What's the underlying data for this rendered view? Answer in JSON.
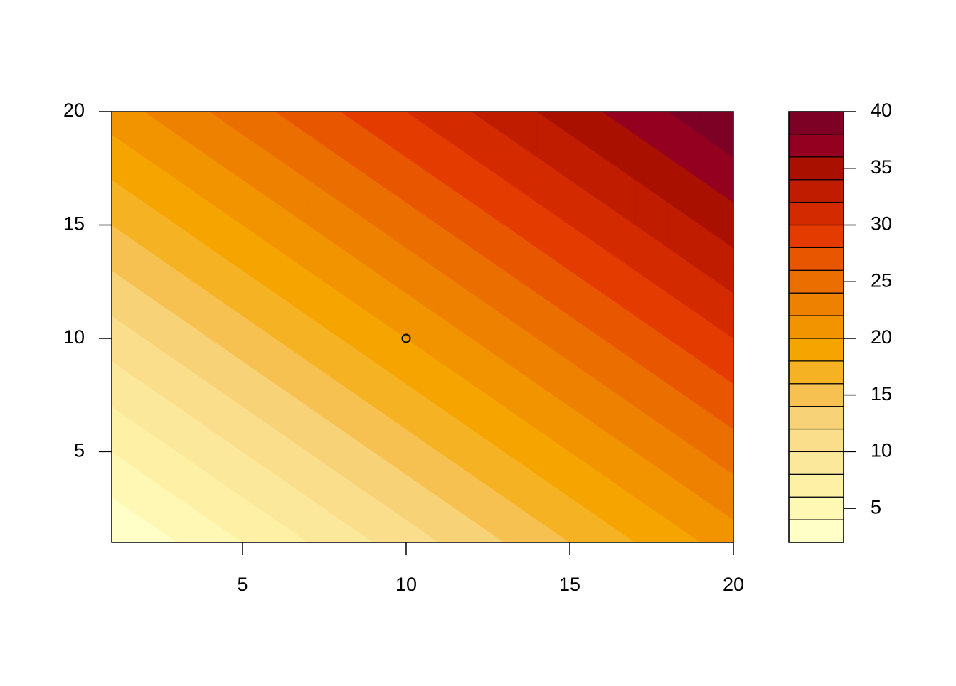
{
  "chart_data": {
    "type": "filled_contour",
    "x": [
      1,
      2,
      3,
      4,
      5,
      6,
      7,
      8,
      9,
      10,
      11,
      12,
      13,
      14,
      15,
      16,
      17,
      18,
      19,
      20
    ],
    "y": [
      1,
      2,
      3,
      4,
      5,
      6,
      7,
      8,
      9,
      10,
      11,
      12,
      13,
      14,
      15,
      16,
      17,
      18,
      19,
      20
    ],
    "z": [
      [
        2,
        3,
        4,
        5,
        6,
        7,
        8,
        9,
        10,
        11,
        12,
        13,
        14,
        15,
        16,
        17,
        18,
        19,
        20,
        21
      ],
      [
        3,
        4,
        5,
        6,
        7,
        8,
        9,
        10,
        11,
        12,
        13,
        14,
        15,
        16,
        17,
        18,
        19,
        20,
        21,
        22
      ],
      [
        4,
        5,
        6,
        7,
        8,
        9,
        10,
        11,
        12,
        13,
        14,
        15,
        16,
        17,
        18,
        19,
        20,
        21,
        22,
        23
      ],
      [
        5,
        6,
        7,
        8,
        9,
        10,
        11,
        12,
        13,
        14,
        15,
        16,
        17,
        18,
        19,
        20,
        21,
        22,
        23,
        24
      ],
      [
        6,
        7,
        8,
        9,
        10,
        11,
        12,
        13,
        14,
        15,
        16,
        17,
        18,
        19,
        20,
        21,
        22,
        23,
        24,
        25
      ],
      [
        7,
        8,
        9,
        10,
        11,
        12,
        13,
        14,
        15,
        16,
        17,
        18,
        19,
        20,
        21,
        22,
        23,
        24,
        25,
        26
      ],
      [
        8,
        9,
        10,
        11,
        12,
        13,
        14,
        15,
        16,
        17,
        18,
        19,
        20,
        21,
        22,
        23,
        24,
        25,
        26,
        27
      ],
      [
        9,
        10,
        11,
        12,
        13,
        14,
        15,
        16,
        17,
        18,
        19,
        20,
        21,
        22,
        23,
        24,
        25,
        26,
        27,
        28
      ],
      [
        10,
        11,
        12,
        13,
        14,
        15,
        16,
        17,
        18,
        19,
        20,
        21,
        22,
        23,
        24,
        25,
        26,
        27,
        28,
        29
      ],
      [
        11,
        12,
        13,
        14,
        15,
        16,
        17,
        18,
        19,
        20,
        21,
        22,
        23,
        24,
        25,
        26,
        27,
        28,
        29,
        30
      ],
      [
        12,
        13,
        14,
        15,
        16,
        17,
        18,
        19,
        20,
        21,
        22,
        23,
        24,
        25,
        26,
        27,
        28,
        29,
        30,
        31
      ],
      [
        13,
        14,
        15,
        16,
        17,
        18,
        19,
        20,
        21,
        22,
        23,
        24,
        25,
        26,
        27,
        28,
        29,
        30,
        31,
        32
      ],
      [
        14,
        15,
        16,
        17,
        18,
        19,
        20,
        21,
        22,
        23,
        24,
        25,
        26,
        27,
        28,
        29,
        30,
        31,
        32,
        33
      ],
      [
        15,
        16,
        17,
        18,
        19,
        20,
        21,
        22,
        23,
        24,
        25,
        26,
        27,
        28,
        29,
        30,
        31,
        32,
        33,
        34
      ],
      [
        16,
        17,
        18,
        19,
        20,
        21,
        22,
        23,
        24,
        25,
        26,
        27,
        28,
        29,
        30,
        31,
        32,
        33,
        34,
        35
      ],
      [
        17,
        18,
        19,
        20,
        21,
        22,
        23,
        24,
        25,
        26,
        27,
        28,
        29,
        30,
        31,
        32,
        33,
        34,
        35,
        36
      ],
      [
        18,
        19,
        20,
        21,
        22,
        23,
        24,
        25,
        26,
        27,
        28,
        29,
        30,
        31,
        32,
        33,
        34,
        35,
        36,
        37
      ],
      [
        19,
        20,
        21,
        22,
        23,
        24,
        25,
        26,
        27,
        28,
        29,
        30,
        31,
        32,
        33,
        34,
        35,
        36,
        37,
        38
      ],
      [
        20,
        21,
        22,
        23,
        24,
        25,
        26,
        27,
        28,
        29,
        30,
        31,
        32,
        33,
        34,
        35,
        36,
        37,
        38,
        39
      ],
      [
        21,
        22,
        23,
        24,
        25,
        26,
        27,
        28,
        29,
        30,
        31,
        32,
        33,
        34,
        35,
        36,
        37,
        38,
        39,
        40
      ]
    ],
    "levels": [
      2,
      4,
      6,
      8,
      10,
      12,
      14,
      16,
      18,
      20,
      22,
      24,
      26,
      28,
      30,
      32,
      34,
      36,
      38,
      40
    ],
    "colors": [
      "#FFFFC8",
      "#FFF8B5",
      "#FEF1A6",
      "#FCE89B",
      "#FADE8C",
      "#F8D277",
      "#F6C150",
      "#F5B223",
      "#F5A400",
      "#F19400",
      "#EE8100",
      "#EB6E00",
      "#E95600",
      "#E43C00",
      "#D42A00",
      "#BF1C00",
      "#AA1000",
      "#930020",
      "#7D0025"
    ],
    "xlim": [
      1,
      20
    ],
    "ylim": [
      1,
      20
    ],
    "xticks": [
      5,
      10,
      15,
      20
    ],
    "yticks": [
      5,
      10,
      15,
      20
    ],
    "zticks": [
      5,
      10,
      15,
      20,
      25,
      30,
      35,
      40
    ],
    "points": [
      {
        "x": 10,
        "y": 10
      }
    ]
  }
}
